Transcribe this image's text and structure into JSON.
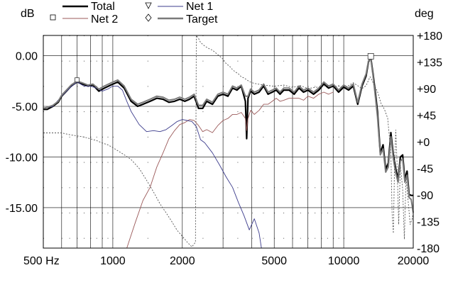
{
  "chart_data": {
    "type": "line",
    "x_scale": "log",
    "xlim": [
      500,
      20000
    ],
    "ylim": [
      -19,
      2
    ],
    "y2lim": [
      -180,
      180
    ],
    "y_unit": "dB",
    "y2_unit": "deg",
    "x_ticks": [
      {
        "value": 500,
        "label": "500 Hz"
      },
      {
        "value": 1000,
        "label": "1000"
      },
      {
        "value": 2000,
        "label": "2000"
      },
      {
        "value": 5000,
        "label": "5000"
      },
      {
        "value": 10000,
        "label": "10000"
      },
      {
        "value": 20000,
        "label": "20000"
      }
    ],
    "y_ticks": [
      {
        "value": 0,
        "label": "0.00"
      },
      {
        "value": -5,
        "label": "-5.00"
      },
      {
        "value": -10,
        "label": "-10.00"
      },
      {
        "value": -15,
        "label": "-15.00"
      }
    ],
    "y2_ticks": [
      {
        "value": 180,
        "label": "+180"
      },
      {
        "value": 135,
        "label": "+135"
      },
      {
        "value": 90,
        "label": "+90"
      },
      {
        "value": 45,
        "label": "+45"
      },
      {
        "value": 0,
        "label": "+0"
      },
      {
        "value": -45,
        "label": "-45"
      },
      {
        "value": -90,
        "label": "-90"
      },
      {
        "value": -135,
        "label": "-135"
      },
      {
        "value": -180,
        "label": "-180"
      }
    ],
    "grid": true,
    "legend_position": "top",
    "series": [
      {
        "name": "Total",
        "color": "#000000",
        "width": 2.2,
        "marker": "none",
        "axis": "left",
        "x": [
          500,
          520,
          550,
          580,
          600,
          630,
          660,
          700,
          740,
          780,
          820,
          870,
          920,
          980,
          1050,
          1120,
          1200,
          1280,
          1350,
          1450,
          1550,
          1650,
          1750,
          1850,
          1950,
          2050,
          2150,
          2250,
          2350,
          2450,
          2550,
          2700,
          2850,
          3000,
          3150,
          3300,
          3450,
          3600,
          3750,
          3800,
          3850,
          3950,
          4100,
          4300,
          4500,
          4700,
          4900,
          5100,
          5300,
          5500,
          5800,
          6100,
          6400,
          6700,
          7000,
          7400,
          7800,
          8200,
          8600,
          9000,
          9500,
          10000,
          10500,
          11000,
          11500,
          12000,
          12500,
          12800,
          13100,
          13400,
          13700,
          14000,
          14400,
          14800,
          15200,
          15600,
          16000,
          16400,
          16800,
          17200,
          17600,
          18000,
          18400,
          18800,
          19200,
          19600,
          20000
        ],
        "y": [
          -5.3,
          -5.3,
          -5.0,
          -4.6,
          -4.0,
          -3.5,
          -3.0,
          -2.6,
          -2.8,
          -3.0,
          -2.9,
          -3.5,
          -3.2,
          -2.9,
          -2.6,
          -3.2,
          -4.5,
          -5.0,
          -4.8,
          -4.5,
          -4.2,
          -4.3,
          -4.6,
          -4.5,
          -4.3,
          -4.5,
          -4.3,
          -4.0,
          -5.2,
          -5.2,
          -4.5,
          -4.8,
          -4.0,
          -3.8,
          -4.0,
          -3.2,
          -3.4,
          -3.0,
          -4.5,
          -8.2,
          -4.2,
          -3.5,
          -3.8,
          -3.6,
          -3.0,
          -3.8,
          -3.6,
          -3.4,
          -3.8,
          -3.4,
          -3.4,
          -3.8,
          -3.2,
          -3.6,
          -3.4,
          -3.8,
          -3.4,
          -2.8,
          -3.2,
          -3.0,
          -3.6,
          -3.1,
          -3.4,
          -3.0,
          -4.8,
          -3.0,
          -2.0,
          -0.6,
          -0.2,
          -1.8,
          -3.6,
          -5.5,
          -9.6,
          -8.8,
          -11.2,
          -10.6,
          -7.6,
          -9.8,
          -11.2,
          -12.2,
          -10.0,
          -9.8,
          -12.2,
          -11.4,
          -13.7,
          -13.8,
          -13.8
        ]
      },
      {
        "name": "Net 2",
        "color": "#9b5a5a",
        "width": 0.9,
        "marker": "square",
        "axis": "left",
        "x": [
          1150,
          1250,
          1350,
          1450,
          1550,
          1650,
          1750,
          1850,
          1950,
          2050,
          2150,
          2250,
          2350,
          2450,
          2550,
          2700,
          2850,
          3000,
          3150,
          3300,
          3450,
          3600,
          3750,
          3800,
          3850,
          3950,
          4100,
          4300,
          4500,
          4700,
          4900,
          5100,
          5300,
          5500,
          5800,
          6100,
          6400,
          6700,
          7000,
          7400,
          7800,
          8200,
          8600,
          9000
        ],
        "y": [
          -19,
          -16.5,
          -14.3,
          -13.0,
          -11.0,
          -9.6,
          -8.2,
          -7.4,
          -6.8,
          -6.6,
          -6.3,
          -6.4,
          -6.9,
          -7.5,
          -7.3,
          -7.6,
          -6.9,
          -6.4,
          -6.2,
          -5.8,
          -5.8,
          -5.6,
          -6.2,
          -7.4,
          -6.2,
          -5.4,
          -5.8,
          -5.4,
          -4.8,
          -4.8,
          -4.5,
          -4.2,
          -4.5,
          -4.4,
          -4.2,
          -4.2,
          -4.2,
          -4.4,
          -4.0,
          -4.2,
          -3.8,
          -3.6,
          -3.8,
          -3.6
        ]
      },
      {
        "name": "Net 1",
        "color": "#3c3c8c",
        "width": 0.9,
        "marker": "triangle",
        "axis": "left",
        "x": [
          500,
          550,
          600,
          650,
          700,
          750,
          800,
          850,
          900,
          950,
          1000,
          1050,
          1100,
          1150,
          1200,
          1300,
          1400,
          1500,
          1600,
          1700,
          1800,
          1900,
          2000,
          2100,
          2200,
          2300,
          2400,
          2500,
          2700,
          2900,
          3100,
          3300,
          3500,
          3700,
          3900,
          4100,
          4300,
          4400
        ],
        "y": [
          -5.2,
          -5.0,
          -4.0,
          -3.2,
          -2.6,
          -3.0,
          -3.0,
          -3.2,
          -3.5,
          -3.3,
          -3.0,
          -3.0,
          -3.4,
          -4.5,
          -5.5,
          -6.8,
          -7.5,
          -7.4,
          -7.5,
          -7.3,
          -6.9,
          -6.5,
          -6.3,
          -6.4,
          -6.5,
          -7.0,
          -8.3,
          -8.6,
          -9.6,
          -10.8,
          -12.0,
          -13.0,
          -14.5,
          -15.8,
          -17.2,
          -16.1,
          -17.5,
          -19.0
        ]
      },
      {
        "name": "Target",
        "color": "#7a7a7a",
        "width": 2.0,
        "marker": "diamond",
        "axis": "left",
        "x": [
          500,
          520,
          550,
          580,
          600,
          630,
          660,
          700,
          740,
          780,
          820,
          870,
          920,
          980,
          1050,
          1120,
          1200,
          1280,
          1350,
          1450,
          1550,
          1650,
          1750,
          1850,
          1950,
          2050,
          2150,
          2250,
          2350,
          2450,
          2550,
          2700,
          2850,
          3000,
          3150,
          3300,
          3450,
          3600,
          3750,
          3850,
          3950,
          4100,
          4300,
          4500,
          4700,
          4900,
          5100,
          5300,
          5500,
          5800,
          6100,
          6400,
          6700,
          7000,
          7400,
          7800,
          8200,
          8600,
          9000,
          9500,
          10000,
          10500,
          11000,
          11500,
          12000,
          12500,
          12800,
          13100,
          13400,
          13700,
          14000,
          14400,
          14800,
          15200,
          15600,
          16000,
          16400,
          16800,
          17200,
          17600,
          18000,
          18400,
          18800,
          19200,
          19600,
          20000
        ],
        "y": [
          -5.2,
          -5.1,
          -4.9,
          -4.5,
          -3.9,
          -3.4,
          -2.9,
          -2.5,
          -2.7,
          -2.9,
          -2.8,
          -3.3,
          -3.0,
          -2.7,
          -2.4,
          -3.0,
          -4.3,
          -4.8,
          -4.6,
          -4.3,
          -4.0,
          -4.1,
          -4.4,
          -4.3,
          -4.1,
          -4.3,
          -4.1,
          -3.8,
          -4.9,
          -4.9,
          -4.3,
          -4.6,
          -3.8,
          -3.6,
          -3.8,
          -3.0,
          -3.2,
          -2.9,
          -4.0,
          -4.0,
          -3.3,
          -3.6,
          -3.4,
          -2.8,
          -3.6,
          -3.4,
          -3.2,
          -3.6,
          -3.2,
          -3.2,
          -3.6,
          -3.0,
          -3.4,
          -3.2,
          -3.6,
          -3.2,
          -2.6,
          -3.0,
          -2.8,
          -3.4,
          -2.9,
          -3.2,
          -2.8,
          -4.6,
          -2.8,
          -1.8,
          -0.5,
          -0.3,
          -2.0,
          -4.0,
          -6.0,
          -9.8,
          -9.2,
          -11.5,
          -11.0,
          -8.0,
          -10.2,
          -11.6,
          -12.5,
          -10.4,
          -10.2,
          -12.5,
          -11.8,
          -14.0,
          -14.2,
          -15.5
        ]
      },
      {
        "name": "",
        "color": "#555555",
        "width": 0.9,
        "dash": "2,2",
        "marker": "none",
        "axis": "right",
        "x": [
          500,
          550,
          600,
          650,
          700,
          750,
          800,
          850,
          900,
          950,
          1000,
          1100,
          1200,
          1300,
          1400,
          1500,
          1600,
          1700,
          1800,
          1900,
          2000,
          2100,
          2200,
          2280,
          2300,
          2350,
          2400,
          2500,
          2600,
          2700,
          2800,
          2900,
          3000,
          3100,
          3200,
          3300,
          3400,
          3500,
          3600,
          3700,
          3800,
          3900,
          4000,
          4200,
          4500,
          5000,
          5500,
          6000,
          6500,
          7000,
          7500,
          8000,
          8500,
          9000,
          9500,
          10000,
          11000,
          12000,
          12500,
          13000,
          13500,
          14000,
          14500,
          15000,
          15500,
          16000,
          16200,
          16400,
          16600,
          16800,
          17000,
          17300,
          17600,
          18000,
          18300,
          18600,
          19000,
          19400,
          19800,
          20000
        ],
        "y": [
          15,
          15,
          15,
          12,
          10,
          8,
          5,
          2,
          -2,
          -5,
          -10,
          -20,
          -30,
          -45,
          -65,
          -85,
          -105,
          -120,
          -135,
          -150,
          -160,
          -170,
          -178,
          -170,
          180,
          175,
          168,
          162,
          158,
          155,
          150,
          145,
          140,
          132,
          128,
          122,
          118,
          115,
          110,
          108,
          105,
          102,
          100,
          98,
          96,
          94,
          96,
          92,
          95,
          90,
          92,
          93,
          95,
          92,
          95,
          90,
          100,
          90,
          95,
          110,
          98,
          85,
          65,
          55,
          40,
          -20,
          -120,
          -155,
          -40,
          20,
          -30,
          -140,
          -40,
          -80,
          -165,
          -60,
          -100,
          -140,
          -130,
          -120
        ]
      }
    ]
  }
}
